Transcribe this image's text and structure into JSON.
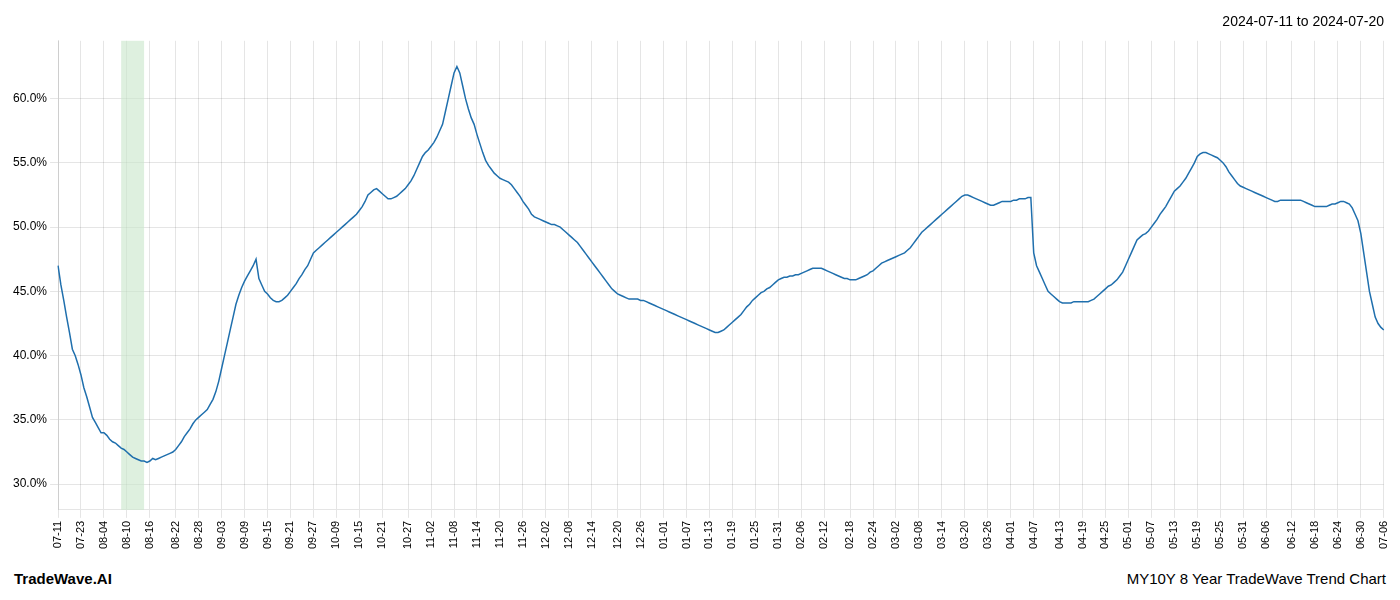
{
  "chart_data": {
    "type": "line",
    "title": "2024-07-11 to 2024-07-20",
    "annotations": [
      "TradeWave.AI",
      "MY10Y 8 Year TradeWave Trend Chart"
    ],
    "color": "#1f6fad",
    "grid": true,
    "ylim": [
      0.28,
      0.645
    ],
    "yticks": [
      {
        "value": 0.3,
        "label": "30.0%"
      },
      {
        "value": 0.35,
        "label": "35.0%"
      },
      {
        "value": 0.4,
        "label": "40.0%"
      },
      {
        "value": 0.45,
        "label": "45.0%"
      },
      {
        "value": 0.5,
        "label": "50.0%"
      },
      {
        "value": 0.55,
        "label": "55.0%"
      },
      {
        "value": 0.6,
        "label": "60.0%"
      }
    ],
    "highlight": {
      "start": 22,
      "end": 30,
      "color": "#c8e6c9"
    },
    "categories": [
      "07-11",
      null,
      null,
      null,
      null,
      null,
      null,
      null,
      "07-23",
      null,
      null,
      null,
      null,
      null,
      null,
      null,
      "08-04",
      null,
      null,
      null,
      null,
      null,
      null,
      null,
      "08-10",
      null,
      null,
      null,
      null,
      null,
      null,
      null,
      "08-16",
      null,
      null,
      null,
      null,
      null,
      null,
      null,
      null,
      "08-22",
      null,
      null,
      null,
      null,
      null,
      null,
      null,
      "08-28",
      null,
      null,
      null,
      null,
      null,
      null,
      null,
      "09-03",
      null,
      null,
      null,
      null,
      null,
      null,
      null,
      "09-09",
      null,
      null,
      null,
      null,
      null,
      null,
      null,
      "09-15",
      null,
      null,
      null,
      null,
      null,
      null,
      null,
      "09-21",
      null,
      null,
      null,
      null,
      null,
      null,
      null,
      "09-27",
      null,
      null,
      null,
      null,
      null,
      null,
      null,
      "10-09",
      null,
      null,
      null,
      null,
      null,
      null,
      null,
      "10-15",
      null,
      null,
      null,
      null,
      null,
      null,
      null,
      "10-21",
      null,
      null,
      null,
      null,
      null,
      null,
      null,
      null,
      "10-27",
      null,
      null,
      null,
      null,
      null,
      null,
      null,
      "11-02",
      null,
      null,
      null,
      null,
      null,
      null,
      null,
      "11-08",
      null,
      null,
      null,
      null,
      null,
      null,
      null,
      "11-14",
      null,
      null,
      null,
      null,
      null,
      null,
      null,
      "11-20",
      null,
      null,
      null,
      null,
      null,
      null,
      null,
      "11-26",
      null,
      null,
      null,
      null,
      null,
      null,
      null,
      "12-02",
      null,
      null,
      null,
      null,
      null,
      null,
      null,
      "12-08",
      null,
      null,
      null,
      null,
      null,
      null,
      null,
      "12-14",
      null,
      null,
      null,
      null,
      null,
      null,
      null,
      null,
      "12-20",
      null,
      null,
      null,
      null,
      null,
      null,
      null,
      "12-26",
      null,
      null,
      null,
      null,
      null,
      null,
      null,
      "01-01",
      null,
      null,
      null,
      null,
      null,
      null,
      null,
      "01-07",
      null,
      null,
      null,
      null,
      null,
      null,
      null,
      "01-13",
      null,
      null,
      null,
      null,
      null,
      null,
      null,
      "01-19",
      null,
      null,
      null,
      null,
      null,
      null,
      null,
      "01-25",
      null,
      null,
      null,
      null,
      null,
      null,
      null,
      "01-31",
      null,
      null,
      null,
      null,
      null,
      null,
      null,
      "02-06",
      null,
      null,
      null,
      null,
      null,
      null,
      null,
      "02-12",
      null,
      null,
      null,
      null,
      null,
      null,
      null,
      null,
      "02-18",
      null,
      null,
      null,
      null,
      null,
      null,
      null,
      "02-24",
      null,
      null,
      null,
      null,
      null,
      null,
      null,
      "03-02",
      null,
      null,
      null,
      null,
      null,
      null,
      null,
      "03-08",
      null,
      null,
      null,
      null,
      null,
      null,
      null,
      "03-14",
      null,
      null,
      null,
      null,
      null,
      null,
      null,
      "03-20",
      null,
      null,
      null,
      null,
      null,
      null,
      null,
      "03-26",
      null,
      null,
      null,
      null,
      null,
      null,
      null,
      "04-01",
      null,
      null,
      null,
      null,
      null,
      null,
      null,
      "04-07",
      null,
      null,
      null,
      null,
      null,
      null,
      null,
      null,
      "04-13",
      null,
      null,
      null,
      null,
      null,
      null,
      null,
      "04-19",
      null,
      null,
      null,
      null,
      null,
      null,
      null,
      "04-25",
      null,
      null,
      null,
      null,
      null,
      null,
      null,
      "05-01",
      null,
      null,
      null,
      null,
      null,
      null,
      null,
      "05-07",
      null,
      null,
      null,
      null,
      null,
      null,
      null,
      "05-13",
      null,
      null,
      null,
      null,
      null,
      null,
      null,
      "05-19",
      null,
      null,
      null,
      null,
      null,
      null,
      null,
      "05-25",
      null,
      null,
      null,
      null,
      null,
      null,
      null,
      "05-31",
      null,
      null,
      null,
      null,
      null,
      null,
      null,
      "06-06",
      null,
      null,
      null,
      null,
      null,
      null,
      null,
      null,
      "06-12",
      null,
      null,
      null,
      null,
      null,
      null,
      null,
      "06-18",
      null,
      null,
      null,
      null,
      null,
      null,
      null,
      "06-24",
      null,
      null,
      null,
      null,
      null,
      null,
      null,
      "06-30",
      null,
      null,
      null,
      null,
      null,
      null,
      null,
      "07-06"
    ],
    "values": [
      0.47,
      0.455,
      0.443,
      0.43,
      0.418,
      0.405,
      0.4,
      0.393,
      0.385,
      0.375,
      0.368,
      0.36,
      0.352,
      0.348,
      0.344,
      0.34,
      0.34,
      0.338,
      0.335,
      0.333,
      0.332,
      0.33,
      0.328,
      0.327,
      0.325,
      0.323,
      0.321,
      0.32,
      0.319,
      0.318,
      0.318,
      0.317,
      0.318,
      0.32,
      0.319,
      0.32,
      0.321,
      0.322,
      0.323,
      0.324,
      0.325,
      0.327,
      0.33,
      0.333,
      0.337,
      0.34,
      0.343,
      0.347,
      0.35,
      0.352,
      0.354,
      0.356,
      0.358,
      0.362,
      0.366,
      0.372,
      0.38,
      0.39,
      0.4,
      0.41,
      0.42,
      0.43,
      0.44,
      0.447,
      0.453,
      0.458,
      0.462,
      0.466,
      0.47,
      0.475,
      0.46,
      0.455,
      0.45,
      0.448,
      0.445,
      0.443,
      0.442,
      0.442,
      0.443,
      0.445,
      0.447,
      0.45,
      0.453,
      0.456,
      0.46,
      0.463,
      0.467,
      0.47,
      0.475,
      0.48,
      0.482,
      0.484,
      0.486,
      0.488,
      0.49,
      0.492,
      0.494,
      0.496,
      0.498,
      0.5,
      0.502,
      0.504,
      0.506,
      0.508,
      0.51,
      0.513,
      0.516,
      0.52,
      0.525,
      0.527,
      0.529,
      0.53,
      0.528,
      0.526,
      0.524,
      0.522,
      0.522,
      0.523,
      0.524,
      0.526,
      0.528,
      0.53,
      0.533,
      0.536,
      0.54,
      0.545,
      0.55,
      0.555,
      0.558,
      0.56,
      0.563,
      0.566,
      0.57,
      0.575,
      0.58,
      0.59,
      0.6,
      0.61,
      0.62,
      0.625,
      0.62,
      0.61,
      0.6,
      0.592,
      0.585,
      0.58,
      0.572,
      0.565,
      0.558,
      0.552,
      0.548,
      0.545,
      0.542,
      0.54,
      0.538,
      0.537,
      0.536,
      0.535,
      0.533,
      0.53,
      0.527,
      0.524,
      0.52,
      0.517,
      0.514,
      0.51,
      0.508,
      0.507,
      0.506,
      0.505,
      0.504,
      0.503,
      0.502,
      0.502,
      0.501,
      0.5,
      0.498,
      0.496,
      0.494,
      0.492,
      0.49,
      0.488,
      0.485,
      0.482,
      0.479,
      0.476,
      0.473,
      0.47,
      0.467,
      0.464,
      0.461,
      0.458,
      0.455,
      0.452,
      0.45,
      0.448,
      0.447,
      0.446,
      0.445,
      0.444,
      0.444,
      0.444,
      0.444,
      0.443,
      0.443,
      0.442,
      0.441,
      0.44,
      0.439,
      0.438,
      0.437,
      0.436,
      0.435,
      0.434,
      0.433,
      0.432,
      0.431,
      0.43,
      0.429,
      0.428,
      0.427,
      0.426,
      0.425,
      0.424,
      0.423,
      0.422,
      0.421,
      0.42,
      0.419,
      0.418,
      0.418,
      0.419,
      0.42,
      0.422,
      0.424,
      0.426,
      0.428,
      0.43,
      0.432,
      0.435,
      0.438,
      0.44,
      0.443,
      0.445,
      0.447,
      0.449,
      0.45,
      0.452,
      0.453,
      0.455,
      0.457,
      0.459,
      0.46,
      0.461,
      0.461,
      0.462,
      0.462,
      0.463,
      0.463,
      0.464,
      0.465,
      0.466,
      0.467,
      0.468,
      0.468,
      0.468,
      0.468,
      0.467,
      0.466,
      0.465,
      0.464,
      0.463,
      0.462,
      0.461,
      0.46,
      0.46,
      0.459,
      0.459,
      0.459,
      0.46,
      0.461,
      0.462,
      0.463,
      0.465,
      0.466,
      0.468,
      0.47,
      0.472,
      0.473,
      0.474,
      0.475,
      0.476,
      0.477,
      0.478,
      0.479,
      0.48,
      0.482,
      0.484,
      0.487,
      0.49,
      0.493,
      0.496,
      0.498,
      0.5,
      0.502,
      0.504,
      0.506,
      0.508,
      0.51,
      0.512,
      0.514,
      0.516,
      0.518,
      0.52,
      0.522,
      0.524,
      0.525,
      0.525,
      0.524,
      0.523,
      0.522,
      0.521,
      0.52,
      0.519,
      0.518,
      0.517,
      0.517,
      0.518,
      0.519,
      0.52,
      0.52,
      0.52,
      0.52,
      0.521,
      0.521,
      0.522,
      0.522,
      0.522,
      0.523,
      0.523,
      0.48,
      0.47,
      0.465,
      0.46,
      0.455,
      0.45,
      0.448,
      0.446,
      0.444,
      0.442,
      0.441,
      0.441,
      0.441,
      0.441,
      0.442,
      0.442,
      0.442,
      0.442,
      0.442,
      0.442,
      0.443,
      0.444,
      0.446,
      0.448,
      0.45,
      0.452,
      0.454,
      0.455,
      0.457,
      0.459,
      0.462,
      0.465,
      0.47,
      0.475,
      0.48,
      0.485,
      0.49,
      0.492,
      0.494,
      0.495,
      0.497,
      0.5,
      0.503,
      0.506,
      0.51,
      0.513,
      0.516,
      0.52,
      0.524,
      0.528,
      0.53,
      0.532,
      0.535,
      0.538,
      0.542,
      0.546,
      0.55,
      0.555,
      0.557,
      0.558,
      0.558,
      0.557,
      0.556,
      0.555,
      0.554,
      0.552,
      0.55,
      0.547,
      0.543,
      0.54,
      0.537,
      0.534,
      0.532,
      0.531,
      0.53,
      0.529,
      0.528,
      0.527,
      0.526,
      0.525,
      0.524,
      0.523,
      0.522,
      0.521,
      0.52,
      0.52,
      0.521,
      0.521,
      0.521,
      0.521,
      0.521,
      0.521,
      0.521,
      0.521,
      0.52,
      0.519,
      0.518,
      0.517,
      0.516,
      0.516,
      0.516,
      0.516,
      0.516,
      0.517,
      0.518,
      0.518,
      0.519,
      0.52,
      0.52,
      0.519,
      0.518,
      0.515,
      0.51,
      0.505,
      0.495,
      0.48,
      0.465,
      0.45,
      0.44,
      0.43,
      0.425,
      0.422,
      0.42
    ]
  }
}
